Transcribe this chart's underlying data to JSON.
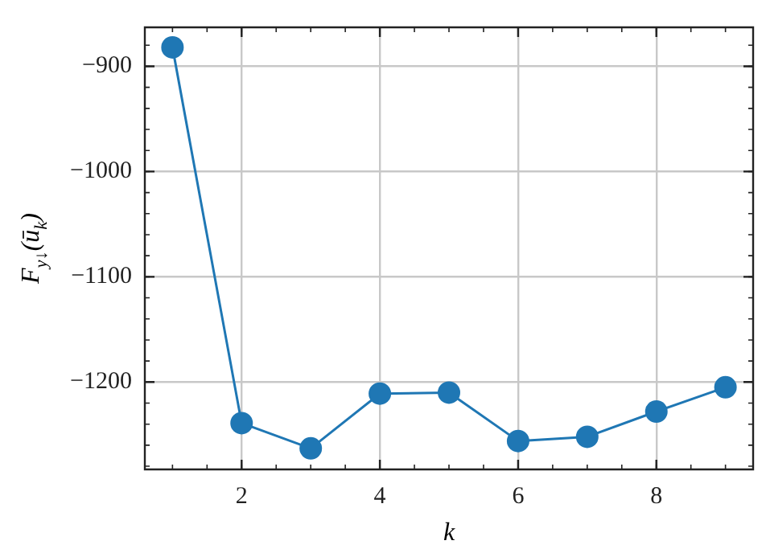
{
  "chart_data": {
    "type": "line",
    "xlabel": "k",
    "ylabel": "F$_{y↓}$(ū$_{k}$)",
    "x": [
      1,
      2,
      3,
      4,
      5,
      6,
      7,
      8,
      9
    ],
    "series": [
      {
        "color": "#1f77b4",
        "values": [
          -882,
          -1239,
          -1263,
          -1211,
          -1210,
          -1256,
          -1252,
          -1228,
          -1205
        ]
      }
    ],
    "xlim": [
      0.6,
      9.4
    ],
    "xticks": [
      2,
      4,
      6,
      8
    ],
    "ylim": [
      -1283,
      -863
    ],
    "yticks": [
      {
        "value": -900,
        "label": "−900"
      },
      {
        "value": -1000,
        "label": "−1000"
      },
      {
        "value": -1100,
        "label": "−1100"
      },
      {
        "value": -1200,
        "label": "−1200"
      }
    ],
    "grid": true,
    "marker": "circle",
    "line_style": "solid",
    "legend": false
  }
}
